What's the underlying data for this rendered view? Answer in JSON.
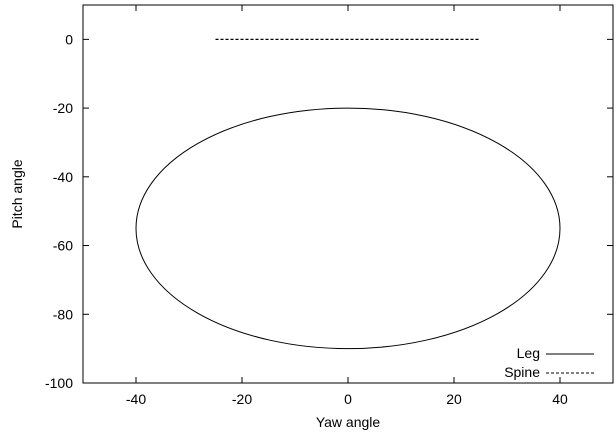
{
  "chart_data": {
    "type": "line",
    "title": "",
    "xlabel": "Yaw angle",
    "ylabel": "Pitch angle",
    "xlim": [
      -50,
      50
    ],
    "ylim": [
      -100,
      10
    ],
    "xticks": [
      -40,
      -20,
      0,
      20,
      40
    ],
    "yticks": [
      0,
      -20,
      -40,
      -60,
      -80,
      -100
    ],
    "grid": false,
    "legend_position": "bottom-right",
    "series": [
      {
        "name": "Leg",
        "style": "solid",
        "color": "#000000",
        "shape": "ellipse",
        "center": [
          0,
          -55
        ],
        "radii": [
          40,
          35
        ],
        "x": [
          0,
          20,
          34.6,
          40,
          34.6,
          20,
          0,
          -20,
          -34.6,
          -40,
          -34.6,
          -20,
          0
        ],
        "y": [
          -20,
          -24.7,
          -37.5,
          -55,
          -72.5,
          -85.3,
          -90,
          -85.3,
          -72.5,
          -55,
          -37.5,
          -24.7,
          -20
        ]
      },
      {
        "name": "Spine",
        "style": "dashed",
        "color": "#000000",
        "x": [
          -25,
          25
        ],
        "y": [
          0,
          0
        ]
      }
    ]
  }
}
